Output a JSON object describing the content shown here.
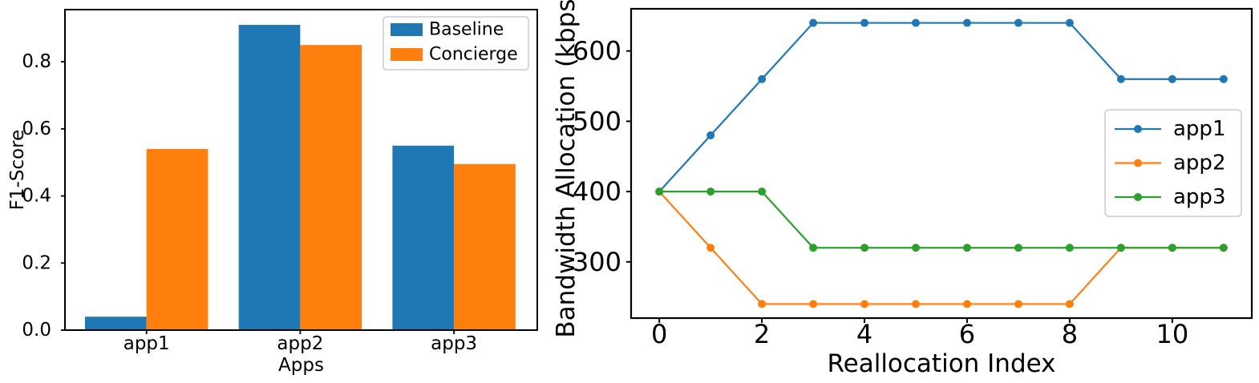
{
  "figure": {
    "background": "#ffffff",
    "axis_color": "#000000",
    "legend_border_color": "#cccccc"
  },
  "chart_data": [
    {
      "id": "chart-f1",
      "type": "bar",
      "title": "",
      "xlabel": "Apps",
      "ylabel": "F1-Score",
      "categories": [
        "app1",
        "app2",
        "app3"
      ],
      "series": [
        {
          "name": "Baseline",
          "color": "#1f77b4",
          "values": [
            0.04,
            0.91,
            0.55
          ]
        },
        {
          "name": "Concierge",
          "color": "#ff7f0e",
          "values": [
            0.54,
            0.85,
            0.495
          ]
        }
      ],
      "yticks": [
        "0.0",
        "0.2",
        "0.4",
        "0.6",
        "0.8"
      ],
      "ylim": [
        0,
        0.9555
      ],
      "grid": false,
      "legend": {
        "position": "upper-right",
        "labels": [
          "Baseline",
          "Concierge"
        ]
      }
    },
    {
      "id": "chart-bw",
      "type": "line",
      "title": "",
      "xlabel": "Reallocation Index",
      "ylabel": "Bandwidth Allocation (kbps)",
      "x": [
        0,
        1,
        2,
        3,
        4,
        5,
        6,
        7,
        8,
        9,
        10,
        11
      ],
      "series": [
        {
          "name": "app1",
          "color": "#1f77b4",
          "values": [
            400,
            480,
            560,
            640,
            640,
            640,
            640,
            640,
            640,
            560,
            560,
            560
          ]
        },
        {
          "name": "app2",
          "color": "#ff7f0e",
          "values": [
            400,
            320,
            240,
            240,
            240,
            240,
            240,
            240,
            240,
            320,
            320,
            320
          ]
        },
        {
          "name": "app3",
          "color": "#2ca02c",
          "values": [
            400,
            400,
            400,
            320,
            320,
            320,
            320,
            320,
            320,
            320,
            320,
            320
          ]
        }
      ],
      "xticks": [
        0,
        2,
        4,
        6,
        8,
        10
      ],
      "yticks": [
        300,
        400,
        500,
        600
      ],
      "xlim": [
        -0.55,
        11.55
      ],
      "ylim": [
        220,
        660
      ],
      "grid": false,
      "marker": "o",
      "legend": {
        "position": "center-right",
        "labels": [
          "app1",
          "app2",
          "app3"
        ]
      }
    }
  ]
}
